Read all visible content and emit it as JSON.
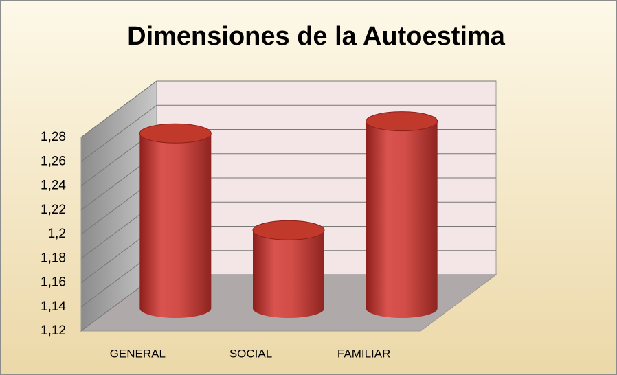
{
  "chart_data": {
    "type": "bar3d-cylinder",
    "title": "Dimensiones de la Autoestima",
    "categories": [
      "GENERAL",
      "SOCIAL",
      "FAMILIAR"
    ],
    "values": [
      1.26,
      1.18,
      1.27
    ],
    "color": "#c0392b",
    "ylim": [
      1.12,
      1.28
    ],
    "yticks": [
      {
        "value": 1.12,
        "label": "1,12"
      },
      {
        "value": 1.14,
        "label": "1,14"
      },
      {
        "value": 1.16,
        "label": "1,16"
      },
      {
        "value": 1.18,
        "label": "1,18"
      },
      {
        "value": 1.2,
        "label": "1,2"
      },
      {
        "value": 1.22,
        "label": "1,22"
      },
      {
        "value": 1.24,
        "label": "1,24"
      },
      {
        "value": 1.26,
        "label": "1,26"
      },
      {
        "value": 1.28,
        "label": "1,28"
      }
    ],
    "grid": true
  }
}
